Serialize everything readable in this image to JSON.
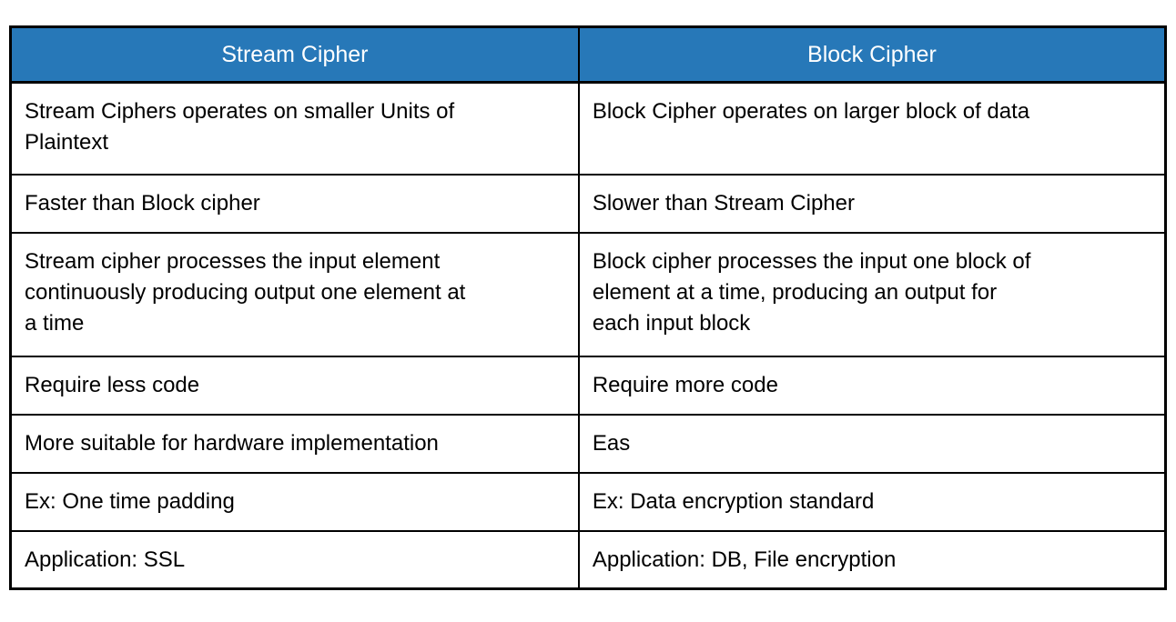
{
  "table": {
    "header": {
      "col1": "Stream Cipher",
      "col2": "Block Cipher"
    },
    "rows": [
      {
        "col1": "Stream Ciphers operates on smaller Units of\nPlaintext",
        "col2": "Block Cipher operates on larger block of data"
      },
      {
        "col1": "Faster than Block cipher",
        "col2": "Slower than Stream Cipher"
      },
      {
        "col1": "Stream cipher processes the input element\ncontinuously producing output one element at\na time",
        "col2": "Block cipher processes the input one block of\nelement at a time, producing an output for\neach input block"
      },
      {
        "col1": "Require less code",
        "col2": "Require more code"
      },
      {
        "col1": "More suitable for hardware implementation",
        "col2": "Eas"
      },
      {
        "col1": "Ex: One time padding",
        "col2": "Ex: Data encryption standard"
      },
      {
        "col1": "Application: SSL",
        "col2": "Application: DB, File encryption"
      }
    ],
    "colors": {
      "header_bg": "#2778B8",
      "header_text": "#FFFFFF",
      "body_text": "#000000",
      "border": "#000000"
    }
  }
}
